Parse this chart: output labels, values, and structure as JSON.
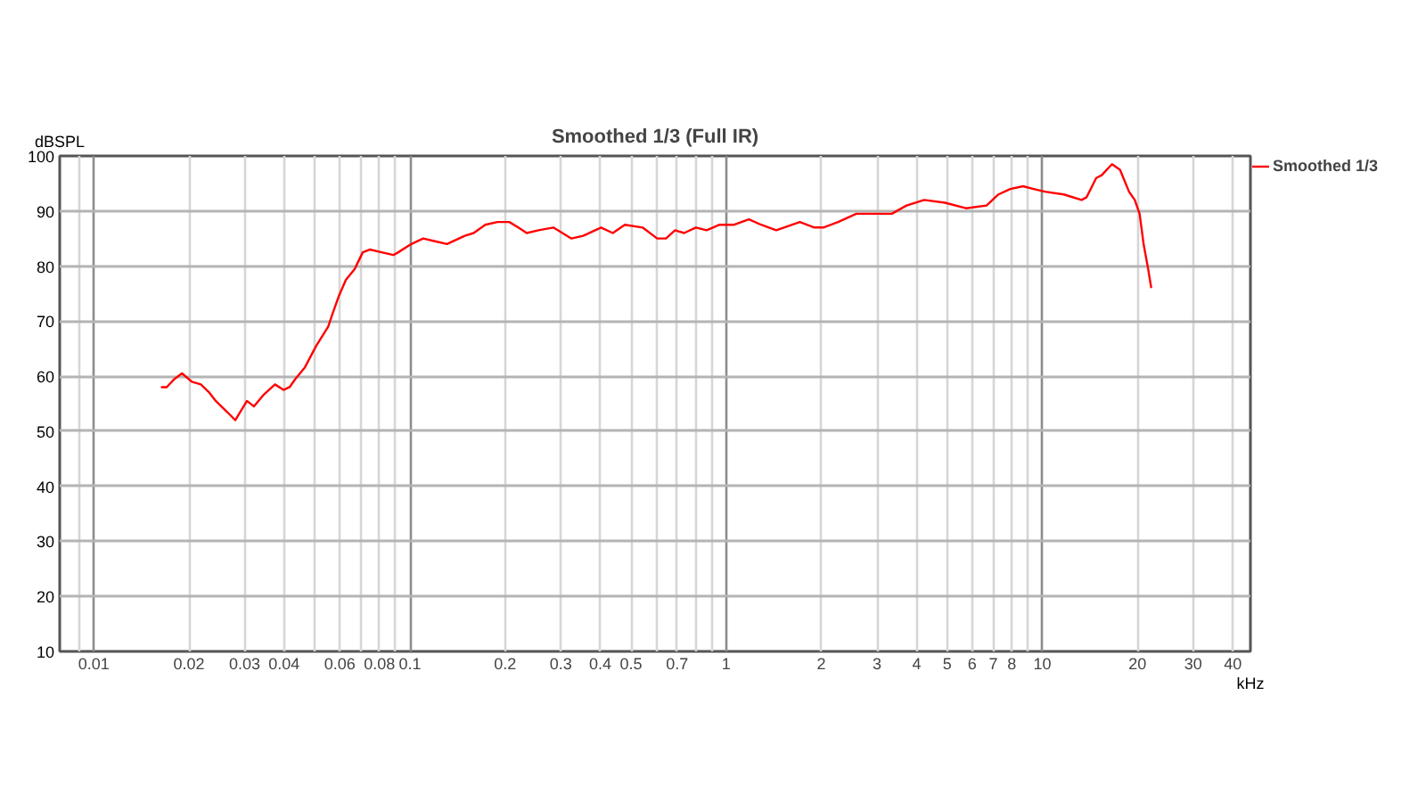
{
  "chart_data": {
    "type": "line",
    "title": "Smoothed 1/3 (Full IR)",
    "xlabel": "kHz",
    "ylabel": "dBSPL",
    "log": "x",
    "grid": true,
    "legend": "top right",
    "xlim": [
      0.0078,
      45.5
    ],
    "ylim": [
      10,
      100
    ],
    "xticks": [
      {
        "value": 0.009,
        "label": null
      },
      0.01,
      0.02,
      0.03,
      0.04,
      {
        "value": 0.05,
        "label": null
      },
      0.06,
      {
        "value": 0.07,
        "label": null
      },
      0.08,
      {
        "value": 0.09,
        "label": null
      },
      0.1,
      0.2,
      0.3,
      0.4,
      0.5,
      {
        "value": 0.6,
        "label": null
      },
      0.7,
      {
        "value": 0.8,
        "label": null
      },
      {
        "value": 0.9,
        "label": null
      },
      1,
      2,
      3,
      4,
      5,
      6,
      7,
      8,
      {
        "value": 9,
        "label": null
      },
      10,
      20,
      30,
      40
    ],
    "yticks": [
      10,
      20,
      30,
      40,
      50,
      60,
      70,
      80,
      90,
      100
    ],
    "series": [
      {
        "name": "Smoothed 1/3",
        "color": "#ff0000",
        "x": [
          0.0163,
          0.017,
          0.018,
          0.019,
          0.0204,
          0.0218,
          0.0232,
          0.0243,
          0.0264,
          0.028,
          0.0305,
          0.0321,
          0.0343,
          0.0374,
          0.0398,
          0.0416,
          0.0434,
          0.0464,
          0.0505,
          0.0551,
          0.057,
          0.0595,
          0.0627,
          0.0669,
          0.0709,
          0.0746,
          0.0813,
          0.0886,
          0.0918,
          0.101,
          0.11,
          0.12,
          0.131,
          0.149,
          0.159,
          0.173,
          0.189,
          0.206,
          0.22,
          0.234,
          0.255,
          0.284,
          0.324,
          0.353,
          0.402,
          0.438,
          0.478,
          0.544,
          0.605,
          0.645,
          0.689,
          0.736,
          0.802,
          0.867,
          0.953,
          1.06,
          1.18,
          1.29,
          1.44,
          1.71,
          1.9,
          2.03,
          2.26,
          2.58,
          2.93,
          3.34,
          3.72,
          4.23,
          4.92,
          5.73,
          6.66,
          7.26,
          7.91,
          8.69,
          9.39,
          10.2,
          11.7,
          13.3,
          13.8,
          14.8,
          15.4,
          16.6,
          17.6,
          18.8,
          19.6,
          20.3,
          20.9,
          21.6,
          22.1
        ],
        "values": [
          58.0,
          58.0,
          59.5,
          60.5,
          59.0,
          58.5,
          57.0,
          55.5,
          53.5,
          52.0,
          55.5,
          54.5,
          56.5,
          58.5,
          57.5,
          58.0,
          59.5,
          61.5,
          65.5,
          69.0,
          71.5,
          74.5,
          77.5,
          79.5,
          82.5,
          83.0,
          82.5,
          82.0,
          82.5,
          84.0,
          85.0,
          84.5,
          84.0,
          85.5,
          86.0,
          87.5,
          88.0,
          88.0,
          87.0,
          86.0,
          86.5,
          87.0,
          85.0,
          85.5,
          87.0,
          86.0,
          87.5,
          87.0,
          85.0,
          85.0,
          86.5,
          86.0,
          87.0,
          86.5,
          87.5,
          87.5,
          88.5,
          87.5,
          86.5,
          88.0,
          87.0,
          87.0,
          88.0,
          89.5,
          89.5,
          89.5,
          91.0,
          92.0,
          91.5,
          90.5,
          91.0,
          93.0,
          94.0,
          94.5,
          94.0,
          93.5,
          93.0,
          92.0,
          92.5,
          96.0,
          96.5,
          98.5,
          97.5,
          93.5,
          92.0,
          89.5,
          84.0,
          79.5,
          76.0
        ]
      }
    ]
  }
}
